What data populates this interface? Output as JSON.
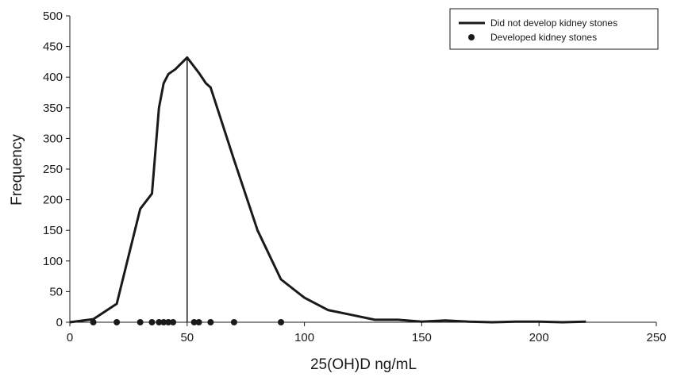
{
  "chart_data": {
    "type": "line",
    "title": "",
    "xlabel": "25(OH)D ng/mL",
    "ylabel": "Frequency",
    "xlim": [
      0,
      250
    ],
    "ylim": [
      0,
      500
    ],
    "x_ticks": [
      "0",
      "50",
      "100",
      "150",
      "200",
      "250"
    ],
    "y_ticks": [
      "0",
      "50",
      "100",
      "150",
      "200",
      "250",
      "300",
      "350",
      "400",
      "450",
      "500"
    ],
    "grid": false,
    "legend_position": "top-right",
    "reference_line_x": 50,
    "series": [
      {
        "name": "Did not develop kidney stones",
        "style": "line",
        "color": "#1a1a1a",
        "x": [
          0,
          10,
          20,
          30,
          35,
          38,
          40,
          42,
          45,
          50,
          55,
          58,
          60,
          70,
          80,
          90,
          100,
          110,
          120,
          130,
          140,
          150,
          160,
          170,
          180,
          190,
          200,
          210,
          220
        ],
        "y": [
          0,
          5,
          30,
          185,
          210,
          350,
          390,
          405,
          413,
          432,
          407,
          390,
          383,
          265,
          150,
          70,
          40,
          20,
          12,
          4,
          4,
          1,
          3,
          1,
          0,
          1,
          1,
          0,
          1
        ]
      },
      {
        "name": "Developed kidney stones",
        "style": "markers",
        "color": "#1a1a1a",
        "x": [
          10,
          20,
          30,
          35,
          38,
          40,
          42,
          44,
          53,
          55,
          60,
          70,
          90
        ],
        "y": [
          0,
          0,
          0,
          0,
          0,
          0,
          0,
          0,
          0,
          0,
          0,
          0,
          0
        ]
      }
    ]
  }
}
